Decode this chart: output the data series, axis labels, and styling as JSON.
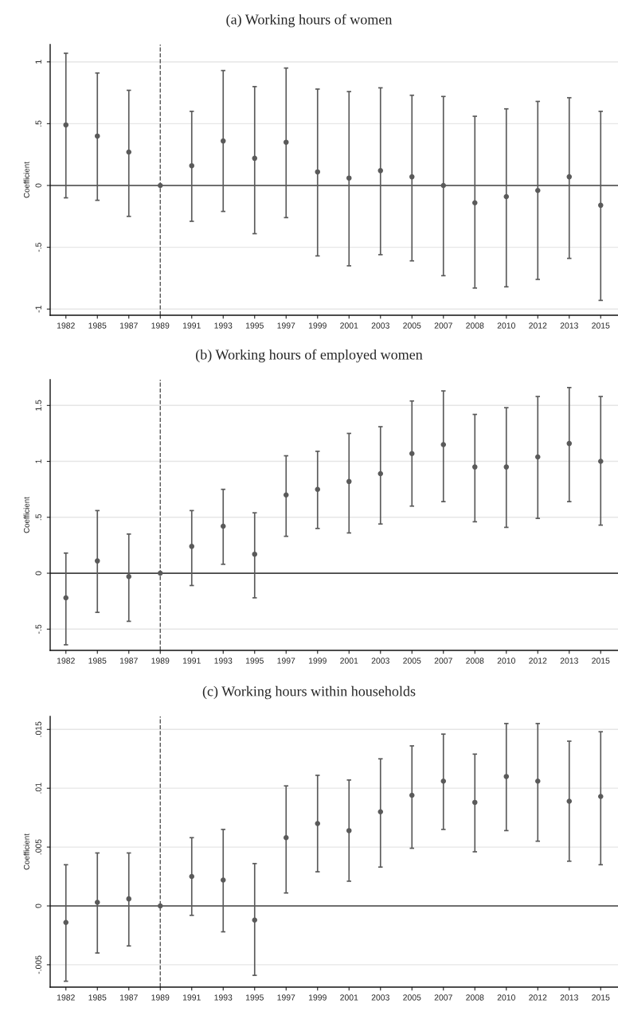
{
  "chart_data": [
    {
      "type": "scatter",
      "title": "(a) Working hours of women",
      "ylabel": "Coefficient",
      "categories": [
        "1982",
        "1985",
        "1987",
        "1989",
        "1991",
        "1993",
        "1995",
        "1997",
        "1999",
        "2001",
        "2003",
        "2005",
        "2007",
        "2008",
        "2010",
        "2012",
        "2013",
        "2015"
      ],
      "series": [
        {
          "color": "#5a5a5a",
          "values": [
            0.49,
            0.4,
            0.27,
            0,
            0.16,
            0.36,
            0.22,
            0.35,
            0.11,
            0.06,
            0.12,
            0.07,
            0,
            -0.14,
            -0.09,
            -0.04,
            0.07,
            -0.16
          ],
          "errors": [
            [
              -0.1,
              1.07
            ],
            [
              -0.12,
              0.91
            ],
            [
              -0.25,
              0.77
            ],
            null,
            [
              -0.29,
              0.6
            ],
            [
              -0.21,
              0.93
            ],
            [
              -0.39,
              0.8
            ],
            [
              -0.26,
              0.95
            ],
            [
              -0.57,
              0.78
            ],
            [
              -0.65,
              0.76
            ],
            [
              -0.56,
              0.79
            ],
            [
              -0.61,
              0.73
            ],
            [
              -0.73,
              0.72
            ],
            [
              -0.83,
              0.56
            ],
            [
              -0.82,
              0.62
            ],
            [
              -0.76,
              0.68
            ],
            [
              -0.59,
              0.71
            ],
            [
              -0.93,
              0.6
            ]
          ]
        }
      ],
      "marker": "circle",
      "ylim": [
        -1.05,
        1.14
      ],
      "yticks": [
        {
          "value": -1,
          "label": "-1"
        },
        {
          "value": -0.5,
          "label": "-.5"
        },
        0,
        {
          "value": 0.5,
          "label": ".5"
        },
        1
      ],
      "grid": "y",
      "ref_lines": [
        {
          "axis": "x",
          "value": "1989",
          "line_style": "dashed",
          "color": "#555555"
        },
        {
          "axis": "y",
          "value": 0,
          "line_style": "solid",
          "color": "#444444"
        }
      ]
    },
    {
      "type": "scatter",
      "title": "(b) Working hours of employed women",
      "ylabel": "Coefficient",
      "categories": [
        "1982",
        "1985",
        "1987",
        "1989",
        "1991",
        "1993",
        "1995",
        "1997",
        "1999",
        "2001",
        "2003",
        "2005",
        "2007",
        "2008",
        "2010",
        "2012",
        "2013",
        "2015"
      ],
      "series": [
        {
          "color": "#5a5a5a",
          "values": [
            -0.22,
            0.11,
            -0.03,
            0,
            0.24,
            0.42,
            0.17,
            0.7,
            0.75,
            0.82,
            0.89,
            1.07,
            1.15,
            0.95,
            0.95,
            1.04,
            1.16,
            1.0
          ],
          "errors": [
            [
              -0.64,
              0.18
            ],
            [
              -0.35,
              0.56
            ],
            [
              -0.43,
              0.35
            ],
            null,
            [
              -0.11,
              0.56
            ],
            [
              0.08,
              0.75
            ],
            [
              -0.22,
              0.54
            ],
            [
              0.33,
              1.05
            ],
            [
              0.4,
              1.09
            ],
            [
              0.36,
              1.25
            ],
            [
              0.44,
              1.31
            ],
            [
              0.6,
              1.54
            ],
            [
              0.64,
              1.63
            ],
            [
              0.46,
              1.42
            ],
            [
              0.41,
              1.48
            ],
            [
              0.49,
              1.58
            ],
            [
              0.64,
              1.66
            ],
            [
              0.43,
              1.58
            ]
          ]
        }
      ],
      "marker": "circle",
      "ylim": [
        -0.69,
        1.73
      ],
      "yticks": [
        {
          "value": -0.5,
          "label": "-.5"
        },
        0,
        {
          "value": 0.5,
          "label": ".5"
        },
        1,
        1.5
      ],
      "grid": "y",
      "ref_lines": [
        {
          "axis": "x",
          "value": "1989",
          "line_style": "dashed",
          "color": "#555555"
        },
        {
          "axis": "y",
          "value": 0,
          "line_style": "solid",
          "color": "#444444"
        }
      ]
    },
    {
      "type": "scatter",
      "title": "(c) Working hours within households",
      "ylabel": "Coefficient",
      "categories": [
        "1982",
        "1985",
        "1987",
        "1989",
        "1991",
        "1993",
        "1995",
        "1997",
        "1999",
        "2001",
        "2003",
        "2005",
        "2007",
        "2008",
        "2010",
        "2012",
        "2013",
        "2015"
      ],
      "series": [
        {
          "color": "#5a5a5a",
          "values": [
            -0.0014,
            0.0003,
            0.0006,
            0,
            0.0025,
            0.0022,
            -0.0012,
            0.0058,
            0.007,
            0.0064,
            0.008,
            0.0094,
            0.0106,
            0.0088,
            0.011,
            0.0106,
            0.0089,
            0.0093
          ],
          "errors": [
            [
              -0.0064,
              0.0035
            ],
            [
              -0.004,
              0.0045
            ],
            [
              -0.0034,
              0.0045
            ],
            null,
            [
              -0.0008,
              0.0058
            ],
            [
              -0.0022,
              0.0065
            ],
            [
              -0.0059,
              0.0036
            ],
            [
              0.0011,
              0.0102
            ],
            [
              0.0029,
              0.0111
            ],
            [
              0.0021,
              0.0107
            ],
            [
              0.0033,
              0.0125
            ],
            [
              0.0049,
              0.0136
            ],
            [
              0.0065,
              0.0146
            ],
            [
              0.0046,
              0.0129
            ],
            [
              0.0064,
              0.0155
            ],
            [
              0.0055,
              0.0155
            ],
            [
              0.0038,
              0.014
            ],
            [
              0.0035,
              0.0148
            ]
          ]
        }
      ],
      "marker": "circle",
      "ylim": [
        -0.0069,
        0.0161
      ],
      "yticks": [
        {
          "value": -0.005,
          "label": "-.005"
        },
        0,
        {
          "value": 0.005,
          "label": ".005"
        },
        {
          "value": 0.01,
          "label": ".01"
        },
        {
          "value": 0.015,
          "label": ".015"
        }
      ],
      "grid": "y",
      "ref_lines": [
        {
          "axis": "x",
          "value": "1989",
          "line_style": "dashed",
          "color": "#555555"
        },
        {
          "axis": "y",
          "value": 0,
          "line_style": "solid",
          "color": "#444444"
        }
      ]
    }
  ]
}
